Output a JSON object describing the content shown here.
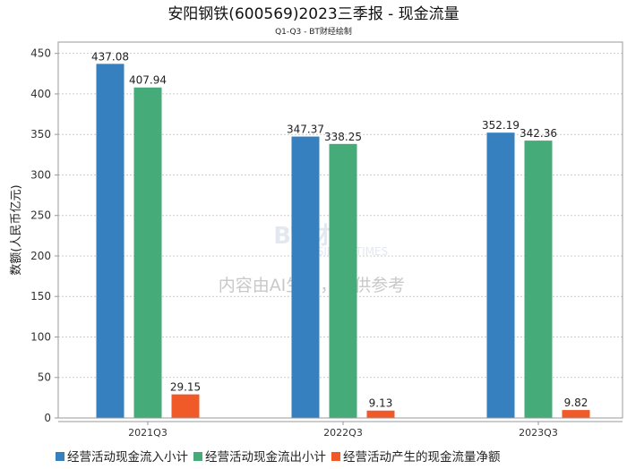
{
  "chart_data": {
    "type": "bar",
    "title": "安阳钢铁(600569)2023三季报 - 现金流量",
    "subtitle": "Q1-Q3 - BT财经绘制",
    "xlabel": "",
    "ylabel": "数额(人民币亿元)",
    "ylim": [
      0,
      464
    ],
    "yticks": [
      0,
      50,
      100,
      150,
      200,
      250,
      300,
      350,
      400,
      450
    ],
    "grid": true,
    "legend_position": "bottom",
    "categories": [
      "2021Q3",
      "2022Q3",
      "2023Q3"
    ],
    "series": [
      {
        "name": "经营活动现金流入小计",
        "color": "#3780bf",
        "values": [
          437.08,
          347.37,
          352.19
        ]
      },
      {
        "name": "经营活动现金流出小计",
        "color": "#45ab78",
        "values": [
          407.94,
          338.25,
          342.36
        ]
      },
      {
        "name": "经营活动产生的现金流量净额",
        "color": "#f05a28",
        "values": [
          29.15,
          9.13,
          9.82
        ]
      }
    ]
  },
  "watermark": {
    "logo": "BT财经",
    "logo_sub": "BUSINESSTIMES",
    "notice": "内容由AI生成，仅供参考"
  }
}
